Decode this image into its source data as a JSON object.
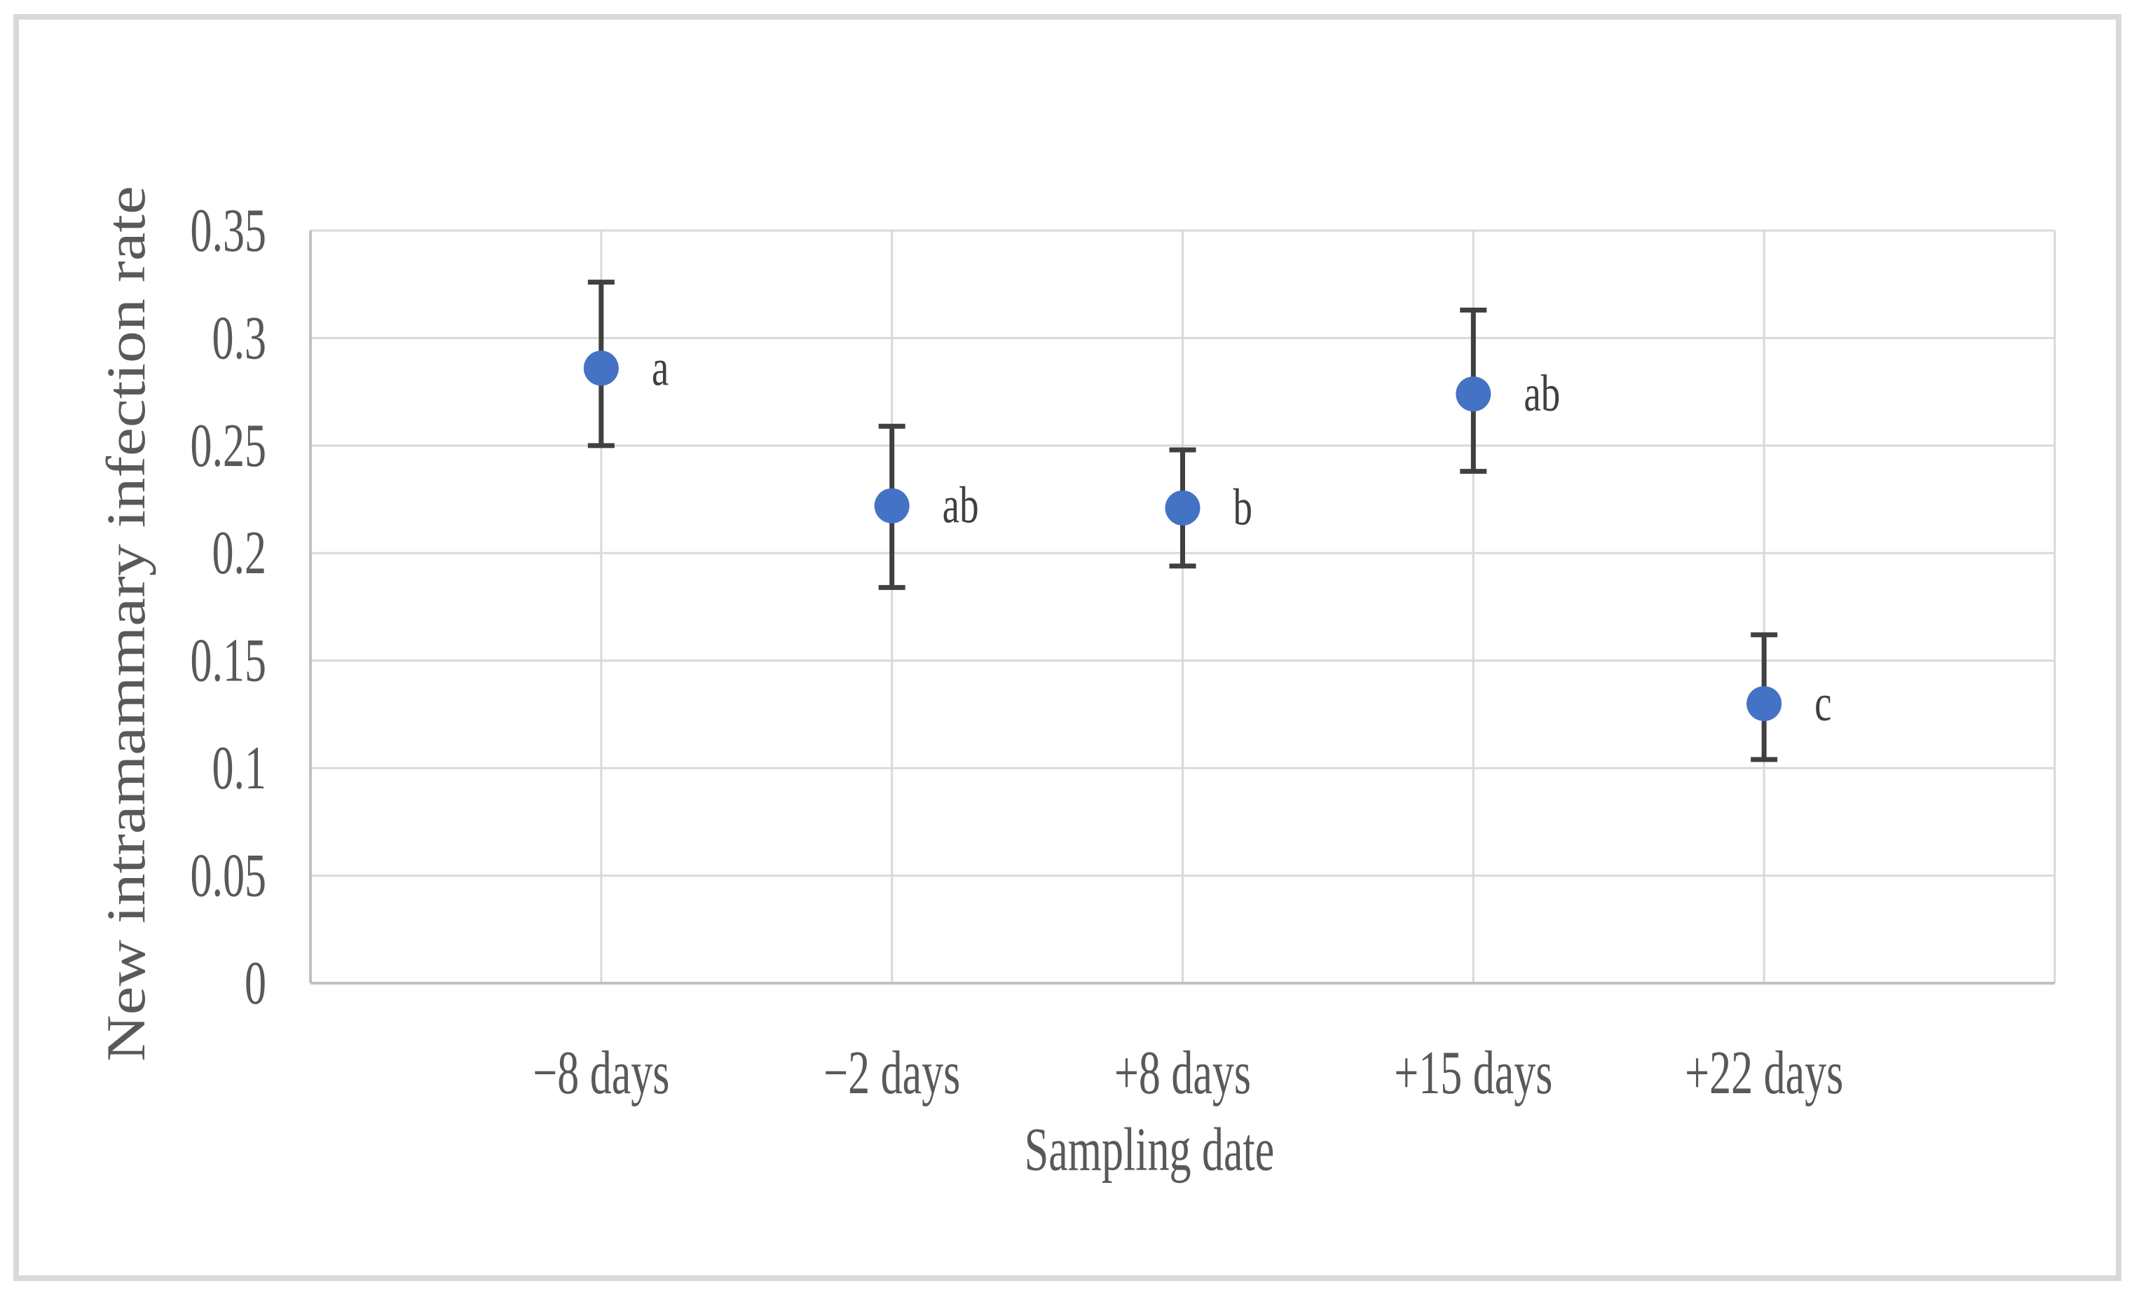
{
  "figure": {
    "background": "#ffffff",
    "border_color": "#d9d9d9"
  },
  "chart_data": {
    "type": "scatter",
    "title": "",
    "xlabel": "Sampling date",
    "ylabel": "New intramammary infection rate",
    "categories": [
      "−8 days",
      "−2 days",
      "+8 days",
      "+15 days",
      "+22 days"
    ],
    "series": [
      {
        "values": [
          0.286,
          0.222,
          0.221,
          0.274,
          0.13
        ],
        "error_upper": [
          0.326,
          0.259,
          0.248,
          0.313,
          0.162
        ],
        "error_lower": [
          0.25,
          0.184,
          0.194,
          0.238,
          0.104
        ],
        "point_labels": [
          "a",
          "ab",
          "b",
          "ab",
          "c"
        ]
      }
    ],
    "ylim": [
      0,
      0.35
    ],
    "ytick_step": 0.05,
    "ytick_labels": [
      "0",
      "0.05",
      "0.1",
      "0.15",
      "0.2",
      "0.25",
      "0.3",
      "0.35"
    ],
    "grid": true,
    "legend": "none",
    "colors": {
      "marker": "#4472c4",
      "error_bar": "#404040",
      "point_label": "#404040",
      "axis_text": "#595959",
      "gridline": "#d9d9d9",
      "axis_line": "#c1c1c1"
    }
  }
}
